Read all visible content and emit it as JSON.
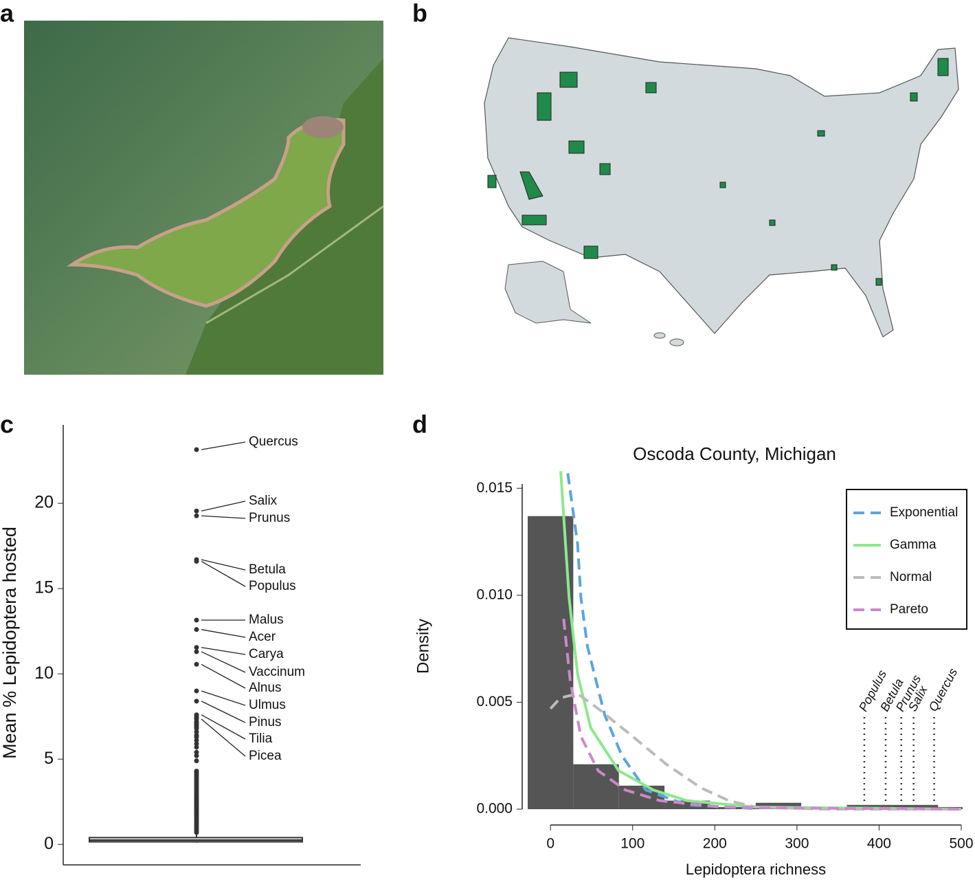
{
  "panels": [
    "a",
    "b",
    "c",
    "d"
  ],
  "chart_data": [
    {
      "type": "box",
      "ylabel": "Mean % Lepidoptera hosted",
      "ylim": [
        -1.2,
        24.6
      ],
      "yticks": [
        0,
        5,
        10,
        15,
        20
      ],
      "box": {
        "whisker_low": 0.1,
        "q1": 0.15,
        "median": 0.25,
        "q3": 0.4,
        "whisker_high": 0.6
      },
      "outliers": {
        "names": [
          "Quercus",
          "Salix",
          "Prunus",
          "Betula",
          "Populus",
          "Malus",
          "Acer",
          "Carya",
          "Vaccinum",
          "Alnus",
          "Ulmus",
          "Pinus",
          "Tilia",
          "Picea"
        ],
        "values": [
          23.15,
          19.55,
          19.27,
          16.7,
          16.6,
          13.15,
          12.6,
          11.55,
          11.3,
          10.56,
          9.0,
          8.4,
          7.6,
          7.35
        ]
      },
      "other_outliers": [
        7.5,
        7.4,
        7.2,
        7.1,
        7.0,
        6.9,
        6.8,
        6.6,
        6.4,
        6.3,
        6.1,
        5.9,
        5.7,
        5.4,
        5.2,
        4.9,
        4.3,
        4.2,
        4.1,
        4.0,
        3.9,
        3.8,
        3.7,
        3.6,
        3.5,
        3.4,
        3.3,
        3.2,
        3.1,
        3.0,
        2.9,
        2.8,
        2.7,
        2.6,
        2.5,
        2.4,
        2.3,
        2.2,
        2.1,
        2.0,
        1.9,
        1.8,
        1.7,
        1.6,
        1.5,
        1.4,
        1.3,
        1.2,
        1.1,
        1.0,
        0.9,
        0.8,
        0.7
      ]
    },
    {
      "type": "histogram",
      "title": "Oscoda County, Michigan",
      "xlabel": "Lepidoptera richness",
      "ylabel": "Density",
      "bins": [
        -27.75,
        27.75,
        83.25,
        138.75,
        194.25,
        249.75,
        305.25,
        360.75,
        416.25,
        471.75,
        527.25
      ],
      "counts": [
        0.0137,
        0.0021,
        0.0011,
        0.0004,
        0.0001,
        0.0003,
        1e-05,
        0.0002,
        0.0002,
        0.0001
      ],
      "color": "#555555",
      "xlim": [
        -27.75,
        500
      ],
      "ylim": [
        0,
        0.0152
      ],
      "xticks": [
        0,
        100,
        200,
        300,
        400,
        500
      ],
      "yticks": [
        {
          "value": 0,
          "label": "0.000"
        },
        {
          "value": 0.005,
          "label": "0.005"
        },
        {
          "value": 0.01,
          "label": "0.010"
        },
        {
          "value": 0.015,
          "label": "0.015"
        }
      ],
      "series": [
        {
          "name": "Exponential",
          "color": "#5aa5e0",
          "style": "dashed",
          "x": [
            21,
            33,
            37,
            45,
            66,
            87,
            116,
            166,
            250
          ],
          "values": [
            0.0157,
            0.0124,
            0.0099,
            0.0076,
            0.0044,
            0.0025,
            0.0009,
            0.0002,
            3e-05
          ]
        },
        {
          "name": "Gamma",
          "color": "#8de88d",
          "style": "solid",
          "x": [
            12.5,
            17.6,
            22.6,
            33,
            49,
            83,
            125,
            166,
            250,
            500
          ],
          "values": [
            0.0158,
            0.0128,
            0.0099,
            0.0063,
            0.0038,
            0.0018,
            0.0009,
            0.0004,
            0.0001,
            0
          ]
        },
        {
          "name": "Normal",
          "color": "#bbbbbb",
          "style": "dashed",
          "x": [
            0,
            12,
            33,
            58,
            100,
            141,
            183,
            217,
            250,
            334,
            500
          ],
          "values": [
            0.0047,
            0.0052,
            0.0054,
            0.0047,
            0.0034,
            0.0021,
            0.001,
            0.0004,
            0.0001,
            0,
            0
          ]
        },
        {
          "name": "Pareto",
          "color": "#cc88cc",
          "style": "dashed",
          "x": [
            16,
            24,
            37,
            58,
            91,
            133,
            208,
            292,
            500
          ],
          "values": [
            0.0089,
            0.006,
            0.0034,
            0.0018,
            0.0009,
            0.0004,
            0.0001,
            5e-05,
            0
          ]
        }
      ],
      "legend": "top-right",
      "annotations": {
        "labels": [
          "Populus",
          "Betula",
          "Prunus",
          "Salix",
          "Quercus"
        ],
        "x": [
          382,
          408,
          427,
          442,
          467
        ]
      }
    }
  ]
}
